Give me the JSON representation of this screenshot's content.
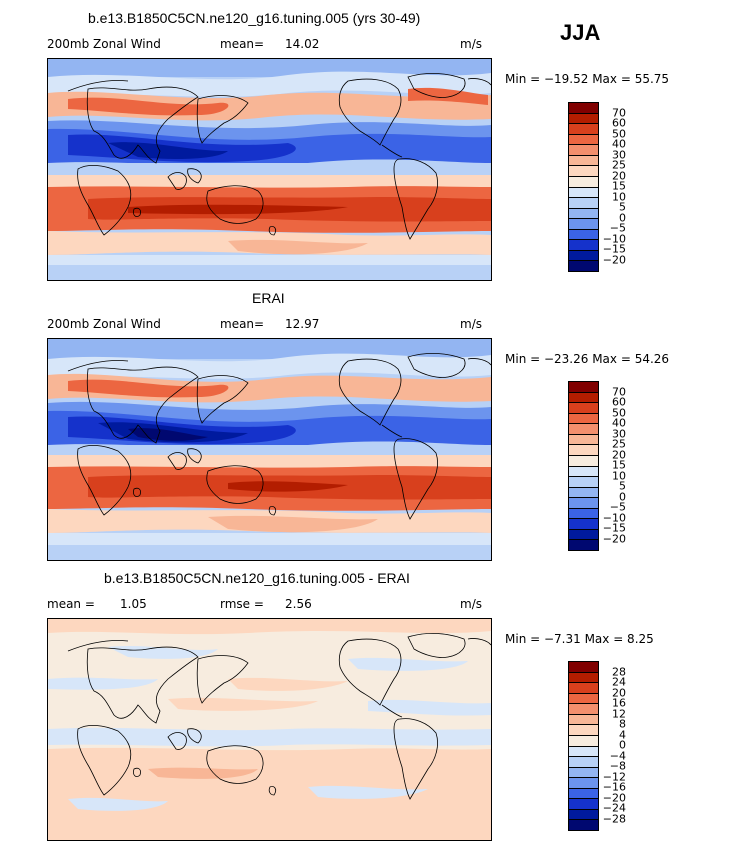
{
  "season": "JJA",
  "panels": [
    {
      "title": "b.e13.B1850C5CN.ne120_g16.tuning.005 (yrs 30-49)",
      "left_label": "200mb Zonal Wind",
      "stat_label": "mean=",
      "stat_value": "14.02",
      "stat2_label": "",
      "stat2_value": "",
      "units": "m/s",
      "min_text": "Min = −19.52 Max = 55.75",
      "colorbar_labels": [
        "70",
        "60",
        "50",
        "40",
        "30",
        "25",
        "20",
        "15",
        "10",
        "5",
        "0",
        "−5",
        "−10",
        "−15",
        "−20"
      ]
    },
    {
      "title": "ERAI",
      "left_label": "200mb Zonal Wind",
      "stat_label": "mean=",
      "stat_value": "12.97",
      "stat2_label": "",
      "stat2_value": "",
      "units": "m/s",
      "min_text": "Min = −23.26 Max = 54.26",
      "colorbar_labels": [
        "70",
        "60",
        "50",
        "40",
        "30",
        "25",
        "20",
        "15",
        "10",
        "5",
        "0",
        "−5",
        "−10",
        "−15",
        "−20"
      ]
    },
    {
      "title": "b.e13.B1850C5CN.ne120_g16.tuning.005 - ERAI",
      "left_label": "mean =",
      "stat_label": "",
      "stat_value": "1.05",
      "stat2_label": "rmse =",
      "stat2_value": "2.56",
      "units": "m/s",
      "min_text": "Min = −7.31 Max =   8.25",
      "colorbar_labels": [
        "28",
        "24",
        "20",
        "16",
        "12",
        "8",
        "4",
        "0",
        "−4",
        "−8",
        "−12",
        "−16",
        "−20",
        "−24",
        "−28"
      ]
    }
  ],
  "colors": {
    "scale": [
      "#800000",
      "#b31d00",
      "#d8401d",
      "#ec6641",
      "#f38f6d",
      "#f8b696",
      "#fdd7bf",
      "#f7ecdf",
      "#d7e6f9",
      "#b8d1f6",
      "#93b5f2",
      "#6c94ee",
      "#3b63e6",
      "#1532cb",
      "#001a9e",
      "#000870"
    ]
  }
}
